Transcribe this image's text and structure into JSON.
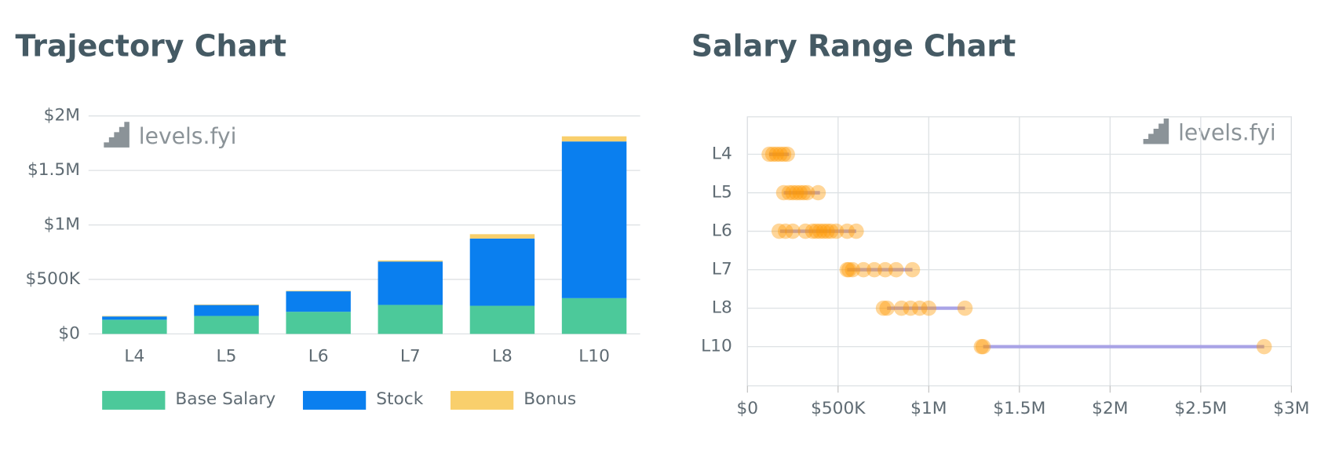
{
  "chart_data": [
    {
      "type": "bar",
      "stacked": true,
      "title": "Trajectory Chart",
      "watermark": "levels.fyi",
      "categories": [
        "L4",
        "L5",
        "L6",
        "L7",
        "L8",
        "L10"
      ],
      "series": [
        {
          "name": "Base Salary",
          "color": "#4cc99a",
          "values": [
            130000,
            165000,
            203000,
            266000,
            258000,
            328000
          ]
        },
        {
          "name": "Stock",
          "color": "#0a7fef",
          "values": [
            30000,
            100000,
            188000,
            398000,
            617000,
            1438000
          ]
        },
        {
          "name": "Bonus",
          "color": "#f9cf6c",
          "values": [
            5000,
            5000,
            5000,
            10000,
            40000,
            47000
          ]
        }
      ],
      "ylim": [
        0,
        2000000
      ],
      "yticks": [
        {
          "value": 0,
          "label": "$0"
        },
        {
          "value": 500000,
          "label": "$500K"
        },
        {
          "value": 1000000,
          "label": "$1M"
        },
        {
          "value": 1500000,
          "label": "$1.5M"
        },
        {
          "value": 2000000,
          "label": "$2M"
        }
      ],
      "grid": true,
      "legend": "bottom"
    },
    {
      "type": "scatter",
      "title": "Salary Range Chart",
      "watermark": "levels.fyi",
      "categories": [
        "L4",
        "L5",
        "L6",
        "L7",
        "L8",
        "L10"
      ],
      "points": [
        [
          120000,
          140000,
          160000,
          180000,
          200000,
          220000
        ],
        [
          200000,
          230000,
          250000,
          270000,
          290000,
          310000,
          330000,
          390000
        ],
        [
          175000,
          210000,
          250000,
          320000,
          360000,
          380000,
          400000,
          420000,
          440000,
          460000,
          490000,
          550000,
          600000
        ],
        [
          550000,
          560000,
          580000,
          640000,
          700000,
          760000,
          820000,
          910000
        ],
        [
          750000,
          770000,
          850000,
          900000,
          950000,
          1000000,
          1200000
        ],
        [
          1290000,
          1300000,
          2850000
        ]
      ],
      "ranges": [
        [
          120000,
          230000
        ],
        [
          200000,
          400000
        ],
        [
          180000,
          600000
        ],
        [
          550000,
          910000
        ],
        [
          770000,
          1200000
        ],
        [
          1300000,
          2850000
        ]
      ],
      "color": "#ff9800",
      "range_color": "#a9a3e6",
      "xlim": [
        0,
        3000000
      ],
      "xticks": [
        {
          "value": 0,
          "label": "$0"
        },
        {
          "value": 500000,
          "label": "$500K"
        },
        {
          "value": 1000000,
          "label": "$1M"
        },
        {
          "value": 1500000,
          "label": "$1.5M"
        },
        {
          "value": 2000000,
          "label": "$2M"
        },
        {
          "value": 2500000,
          "label": "$2.5M"
        },
        {
          "value": 3000000,
          "label": "$3M"
        }
      ],
      "grid": true
    }
  ]
}
